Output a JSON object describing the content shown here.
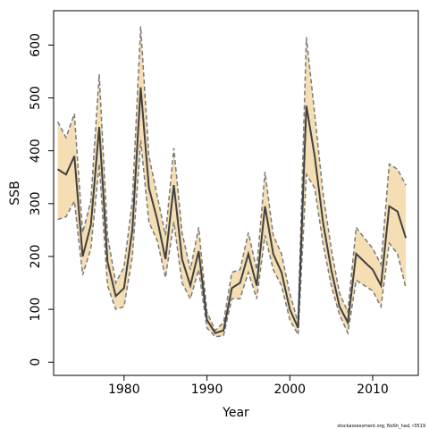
{
  "chart_data": {
    "type": "area",
    "title": "",
    "xlabel": "Year",
    "ylabel": "SSB",
    "xlim": [
      1971.5,
      2015.5
    ],
    "ylim": [
      -25,
      665
    ],
    "xticks": [
      1980,
      1990,
      2000,
      2010
    ],
    "yticks": [
      0,
      100,
      200,
      300,
      400,
      500,
      600
    ],
    "grid": false,
    "legend": "none",
    "colors": {
      "band": "#f5deb3",
      "line": "#404040",
      "bounds": "#7a7a7a",
      "frame": "#000000"
    },
    "x": [
      1972,
      1973,
      1974,
      1975,
      1976,
      1977,
      1978,
      1979,
      1980,
      1981,
      1982,
      1983,
      1984,
      1985,
      1986,
      1987,
      1988,
      1989,
      1990,
      1991,
      1992,
      1993,
      1994,
      1995,
      1996,
      1997,
      1998,
      1999,
      2000,
      2001,
      2002,
      2003,
      2004,
      2005,
      2006,
      2007,
      2008,
      2009,
      2010,
      2011,
      2012,
      2013,
      2014
    ],
    "series": [
      {
        "role": "estimate",
        "values": [
          365,
          355,
          390,
          200,
          260,
          445,
          190,
          125,
          140,
          250,
          520,
          330,
          270,
          195,
          335,
          195,
          145,
          210,
          80,
          55,
          60,
          140,
          150,
          205,
          145,
          295,
          205,
          170,
          100,
          65,
          485,
          390,
          265,
          175,
          105,
          75,
          205,
          190,
          175,
          145,
          295,
          285,
          235
        ]
      },
      {
        "role": "lower",
        "values": [
          270,
          275,
          305,
          165,
          215,
          375,
          145,
          100,
          105,
          200,
          420,
          265,
          230,
          160,
          265,
          150,
          120,
          175,
          65,
          48,
          50,
          120,
          120,
          170,
          120,
          240,
          175,
          145,
          80,
          52,
          355,
          330,
          225,
          145,
          90,
          55,
          155,
          145,
          135,
          105,
          225,
          205,
          140
        ]
      },
      {
        "role": "upper",
        "values": [
          455,
          425,
          470,
          245,
          305,
          545,
          240,
          150,
          180,
          305,
          635,
          390,
          315,
          240,
          405,
          245,
          175,
          255,
          95,
          60,
          75,
          170,
          175,
          245,
          175,
          360,
          240,
          205,
          130,
          75,
          615,
          470,
          320,
          215,
          130,
          95,
          255,
          235,
          215,
          185,
          375,
          365,
          335
        ]
      }
    ]
  },
  "footer": {
    "credit": "stockassessment.org, NoSh_had, r3519"
  }
}
